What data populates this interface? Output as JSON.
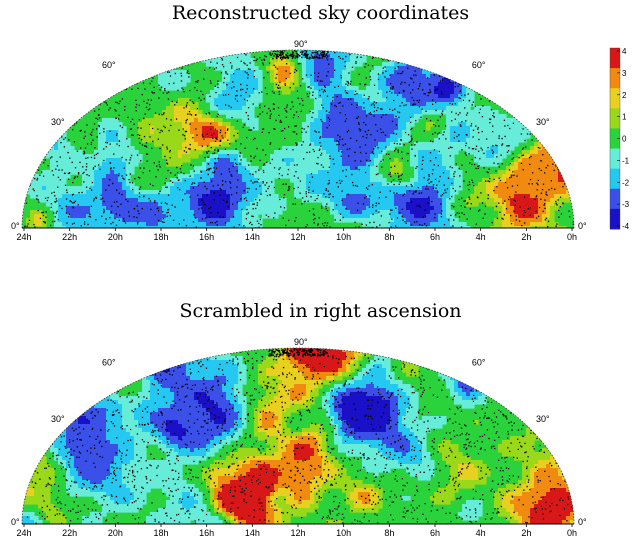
{
  "chart_data": [
    {
      "type": "heatmap",
      "title": "Reconstructed sky coordinates",
      "projection": "hammer-aitoff (northern hemisphere)",
      "x_ticks": [
        "24h",
        "22h",
        "20h",
        "18h",
        "16h",
        "14h",
        "12h",
        "10h",
        "8h",
        "6h",
        "4h",
        "2h",
        "0h"
      ],
      "dec_labels": [
        "0°",
        "30°",
        "60°",
        "90°",
        "60°",
        "30°",
        "0°"
      ],
      "colorbar": {
        "min": -4,
        "max": 4,
        "ticks": [
          "4",
          "3",
          "2",
          "1",
          "0",
          "-1",
          "-2",
          "-3",
          "-4"
        ]
      }
    },
    {
      "type": "heatmap",
      "title": "Scrambled in right ascension",
      "projection": "hammer-aitoff (northern hemisphere)",
      "x_ticks": [
        "24h",
        "22h",
        "20h",
        "18h",
        "16h",
        "14h",
        "12h",
        "10h",
        "8h",
        "6h",
        "4h",
        "2h",
        "0h"
      ],
      "dec_labels": [
        "0°",
        "30°",
        "60°",
        "90°",
        "60°",
        "30°",
        "0°"
      ]
    }
  ],
  "colors": {
    "scale": [
      "#1a10c8",
      "#3a50e8",
      "#24c8f0",
      "#66ecd8",
      "#2ad23c",
      "#9ad81a",
      "#e8d020",
      "#f08a10",
      "#d81818"
    ],
    "outline": "#ffffff",
    "events": "#000000"
  }
}
